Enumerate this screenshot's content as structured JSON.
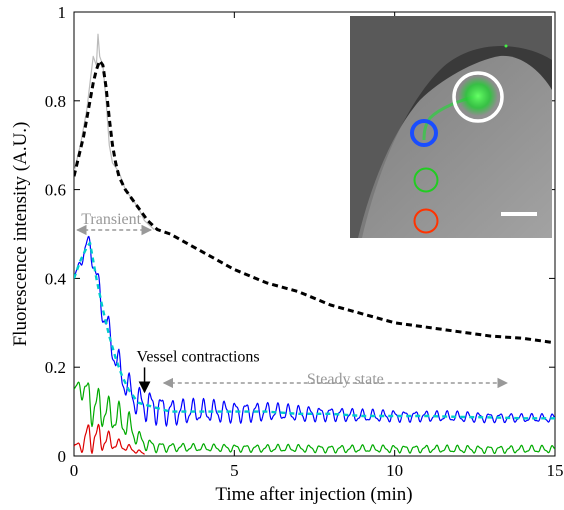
{
  "chart_data": {
    "type": "line",
    "xlabel": "Time after injection (min)",
    "ylabel": "Fluorescence intensity (A.U.)",
    "xlim": [
      0,
      15
    ],
    "ylim": [
      0,
      1
    ],
    "x_ticks": [
      0,
      5,
      10,
      15
    ],
    "y_ticks": [
      0,
      0.2,
      0.4,
      0.6,
      0.8,
      1
    ],
    "x_tick_labels": [
      "0",
      "5",
      "10",
      "15"
    ],
    "y_tick_labels": [
      "0",
      "0.2",
      "0.4",
      "0.6",
      "0.8",
      "1"
    ],
    "grid": false,
    "series": [
      {
        "color": "#bbbbbb",
        "style": "solid",
        "x": [
          0,
          0.2,
          0.4,
          0.5,
          0.6,
          0.7,
          0.75,
          0.8,
          0.9,
          1.0,
          1.1,
          1.2,
          1.4,
          1.6,
          1.8,
          2.0,
          2.2,
          2.5
        ],
        "y": [
          0.64,
          0.7,
          0.78,
          0.84,
          0.9,
          0.88,
          0.95,
          0.9,
          0.88,
          0.8,
          0.7,
          0.66,
          0.64,
          0.6,
          0.58,
          0.56,
          0.53,
          0.51
        ]
      },
      {
        "color": "#000000",
        "style": "dashed",
        "x": [
          0,
          0.1,
          0.2,
          0.3,
          0.4,
          0.5,
          0.6,
          0.7,
          0.8,
          0.9,
          1.0,
          1.1,
          1.2,
          1.3,
          1.4,
          1.6,
          1.8,
          2.0,
          2.3,
          2.6,
          3.0,
          3.5,
          4.0,
          5.0,
          6.0,
          7.0,
          8.0,
          9.0,
          10.0,
          11.0,
          12.0,
          13.0,
          14.0,
          15.0
        ],
        "y": [
          0.63,
          0.66,
          0.69,
          0.72,
          0.76,
          0.8,
          0.84,
          0.87,
          0.89,
          0.88,
          0.83,
          0.76,
          0.7,
          0.66,
          0.63,
          0.6,
          0.58,
          0.56,
          0.53,
          0.51,
          0.5,
          0.48,
          0.46,
          0.42,
          0.39,
          0.37,
          0.34,
          0.32,
          0.3,
          0.29,
          0.28,
          0.27,
          0.265,
          0.255
        ]
      },
      {
        "color": "#0000ff",
        "style": "solid-oscillating",
        "x": [
          0,
          0.2,
          0.4,
          0.5,
          0.7,
          0.9,
          1.1,
          1.3,
          1.5,
          1.7,
          2.0,
          2.5,
          3.0,
          4.0,
          5.0,
          6.0,
          7.0,
          8.0,
          9.0,
          10.0,
          11.0,
          12.0,
          13.0,
          14.0,
          15.0
        ],
        "y": [
          0.4,
          0.44,
          0.47,
          0.48,
          0.4,
          0.33,
          0.27,
          0.22,
          0.18,
          0.15,
          0.12,
          0.11,
          0.1,
          0.1,
          0.1,
          0.1,
          0.095,
          0.095,
          0.09,
          0.09,
          0.09,
          0.088,
          0.087,
          0.085,
          0.085
        ],
        "amp": [
          0,
          0.01,
          0.02,
          0.02,
          0.025,
          0.03,
          0.03,
          0.03,
          0.03,
          0.03,
          0.03,
          0.03,
          0.025,
          0.022,
          0.02,
          0.017,
          0.015,
          0.013,
          0.012,
          0.011,
          0.01,
          0.01,
          0.009,
          0.008,
          0.008
        ]
      },
      {
        "color": "#00cccc",
        "style": "dashed",
        "x": [
          0,
          0.2,
          0.4,
          0.5,
          0.7,
          0.9,
          1.1,
          1.3,
          1.5,
          1.7,
          2.0,
          2.5,
          3.0,
          4.0,
          5.0,
          6.0,
          7.0,
          8.0,
          9.0,
          10.0,
          11.0,
          12.0,
          13.0,
          14.0,
          15.0
        ],
        "y": [
          0.4,
          0.44,
          0.47,
          0.48,
          0.4,
          0.33,
          0.27,
          0.22,
          0.18,
          0.15,
          0.12,
          0.11,
          0.1,
          0.1,
          0.1,
          0.1,
          0.095,
          0.095,
          0.09,
          0.09,
          0.09,
          0.088,
          0.087,
          0.085,
          0.085
        ]
      },
      {
        "color": "#00aa00",
        "style": "solid-oscillating",
        "x": [
          0,
          0.2,
          0.4,
          0.5,
          0.7,
          1.0,
          1.2,
          1.5,
          1.8,
          2.0,
          2.3,
          2.7,
          3.0,
          4.0,
          5.0,
          6.0,
          7.0,
          8.0,
          9.0,
          10.0,
          11.0,
          12.0,
          13.0,
          14.0,
          15.0
        ],
        "y": [
          0.15,
          0.16,
          0.14,
          0.12,
          0.11,
          0.1,
          0.09,
          0.08,
          0.06,
          0.04,
          0.025,
          0.02,
          0.02,
          0.018,
          0.018,
          0.017,
          0.017,
          0.016,
          0.016,
          0.016,
          0.016,
          0.015,
          0.015,
          0.015,
          0.015
        ],
        "amp": [
          0.0,
          0.02,
          0.03,
          0.04,
          0.04,
          0.03,
          0.03,
          0.03,
          0.025,
          0.015,
          0.012,
          0.01,
          0.008,
          0.007,
          0.007,
          0.007,
          0.007,
          0.007,
          0.007,
          0.007,
          0.007,
          0.007,
          0.007,
          0.007,
          0.007
        ]
      },
      {
        "color": "#dd0000",
        "style": "solid-oscillating",
        "x": [
          0,
          0.2,
          0.3,
          0.4,
          0.6,
          0.8,
          1.0,
          1.2,
          1.4,
          1.6,
          1.8,
          2.0,
          2.2
        ],
        "y": [
          0.02,
          0.025,
          0.03,
          0.04,
          0.045,
          0.04,
          0.035,
          0.03,
          0.025,
          0.02,
          0.015,
          0.01,
          0.005
        ],
        "amp": [
          0.005,
          0.01,
          0.02,
          0.03,
          0.03,
          0.025,
          0.02,
          0.015,
          0.01,
          0.008,
          0.006,
          0.004,
          0.002
        ]
      }
    ],
    "annotations": [
      {
        "text": "Transient",
        "type": "span-arrow",
        "x_start": 0.1,
        "x_end": 2.4,
        "y": 0.5,
        "color": "#999999"
      },
      {
        "text": "Steady state",
        "type": "span-arrow",
        "x_start": 2.8,
        "x_end": 13.5,
        "y": 0.16,
        "color": "#999999"
      },
      {
        "text": "Vessel contractions",
        "type": "arrow",
        "x": 2.2,
        "y_from": 0.195,
        "y_to": 0.135,
        "color": "#000000"
      }
    ],
    "inset": {
      "type": "image",
      "background": "#3a3a3a",
      "circles": [
        {
          "color": "#ffffff"
        },
        {
          "color": "#1a4dff"
        },
        {
          "color": "#22cc22"
        },
        {
          "color": "#ff3300"
        }
      ],
      "scale_bar_color": "#ffffff"
    }
  }
}
